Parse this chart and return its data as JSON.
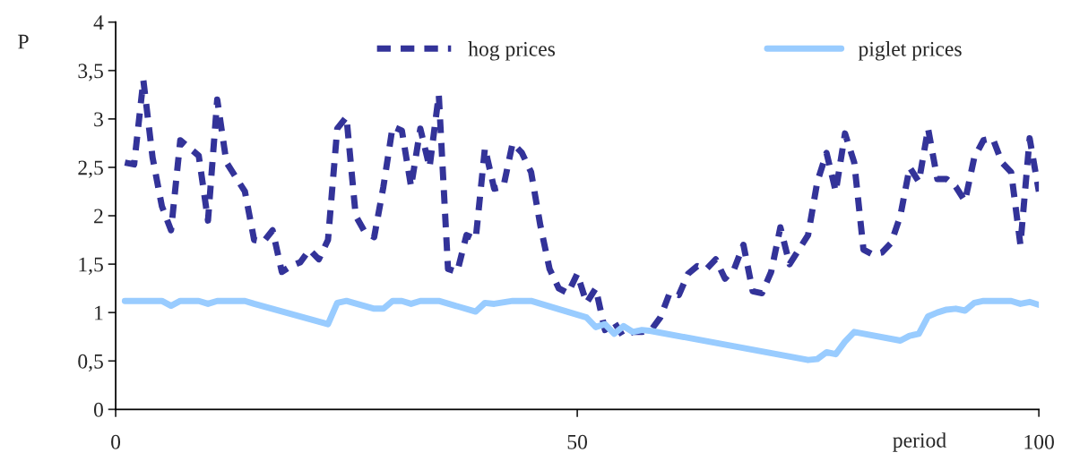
{
  "chart_data": {
    "type": "line",
    "xlabel": "period",
    "ylabel": "P",
    "xlim": [
      0,
      100
    ],
    "xticks": [
      0,
      50,
      100
    ],
    "ylim": [
      0,
      4
    ],
    "yticks": [
      0,
      {
        "value": 0.5,
        "label": "0,5"
      },
      1,
      {
        "value": 1.5,
        "label": "1,5"
      },
      2,
      {
        "value": 2.5,
        "label": "2,5"
      },
      3,
      {
        "value": 3.5,
        "label": "3,5"
      },
      4
    ],
    "grid": false,
    "legend": "top",
    "series": [
      {
        "name": "hog prices",
        "color": "#333399",
        "line_style": "dashed",
        "x": [
          1,
          2,
          3,
          4,
          5,
          6,
          7,
          8,
          9,
          10,
          11,
          12,
          13,
          14,
          15,
          16,
          17,
          18,
          19,
          20,
          21,
          22,
          23,
          24,
          25,
          26,
          27,
          28,
          29,
          30,
          31,
          32,
          33,
          34,
          35,
          36,
          37,
          38,
          39,
          40,
          41,
          42,
          43,
          44,
          45,
          46,
          47,
          48,
          49,
          50,
          51,
          52,
          53,
          54,
          55,
          56,
          57,
          58,
          59,
          60,
          61,
          62,
          63,
          64,
          65,
          66,
          67,
          68,
          69,
          70,
          71,
          72,
          73,
          74,
          75,
          76,
          77,
          78,
          79,
          80,
          81,
          82,
          83,
          84,
          85,
          86,
          87,
          88,
          89,
          90,
          91,
          92,
          93,
          94,
          95,
          96,
          97,
          98,
          99,
          100
        ],
        "values": [
          2.55,
          2.53,
          3.4,
          2.6,
          2.1,
          1.85,
          2.78,
          2.7,
          2.62,
          1.95,
          3.2,
          2.55,
          2.4,
          2.25,
          1.75,
          1.73,
          1.85,
          1.42,
          1.48,
          1.52,
          1.65,
          1.55,
          1.75,
          2.9,
          3.02,
          2.0,
          1.83,
          1.78,
          2.3,
          2.92,
          2.88,
          2.3,
          2.9,
          2.5,
          3.25,
          1.45,
          1.42,
          1.8,
          1.76,
          2.7,
          2.28,
          2.3,
          2.75,
          2.65,
          2.45,
          1.9,
          1.45,
          1.25,
          1.2,
          1.4,
          1.1,
          1.25,
          0.82,
          0.9,
          0.75,
          0.8,
          0.8,
          0.82,
          0.95,
          1.2,
          1.18,
          1.4,
          1.48,
          1.45,
          1.55,
          1.35,
          1.45,
          1.7,
          1.22,
          1.2,
          1.42,
          1.88,
          1.5,
          1.65,
          1.8,
          2.35,
          2.65,
          2.25,
          2.85,
          2.55,
          1.65,
          1.6,
          1.62,
          1.72,
          2.0,
          2.5,
          2.35,
          2.9,
          2.38,
          2.38,
          2.3,
          2.15,
          2.6,
          2.78,
          2.8,
          2.55,
          2.45,
          1.7,
          2.8,
          2.25
        ]
      },
      {
        "name": "piglet prices",
        "color": "#99ccff",
        "line_style": "solid",
        "x": [
          1,
          5,
          6,
          7,
          9,
          10,
          11,
          14,
          15,
          23,
          24,
          25,
          28,
          29,
          30,
          31,
          32,
          33,
          35,
          39,
          40,
          41,
          43,
          45,
          51,
          52,
          53,
          54,
          55,
          56,
          57,
          58,
          75,
          76,
          77,
          78,
          79,
          80,
          85,
          86,
          87,
          88,
          89,
          90,
          91,
          92,
          93,
          94,
          97,
          98,
          99,
          100
        ],
        "values": [
          1.12,
          1.12,
          1.07,
          1.12,
          1.12,
          1.09,
          1.12,
          1.12,
          1.09,
          0.88,
          1.1,
          1.12,
          1.04,
          1.04,
          1.12,
          1.12,
          1.09,
          1.12,
          1.12,
          1.01,
          1.1,
          1.09,
          1.12,
          1.12,
          0.95,
          0.85,
          0.88,
          0.78,
          0.86,
          0.8,
          0.82,
          0.81,
          0.51,
          0.52,
          0.59,
          0.57,
          0.7,
          0.8,
          0.71,
          0.76,
          0.78,
          0.96,
          1.0,
          1.03,
          1.04,
          1.02,
          1.1,
          1.12,
          1.12,
          1.09,
          1.11,
          1.08
        ]
      }
    ]
  }
}
